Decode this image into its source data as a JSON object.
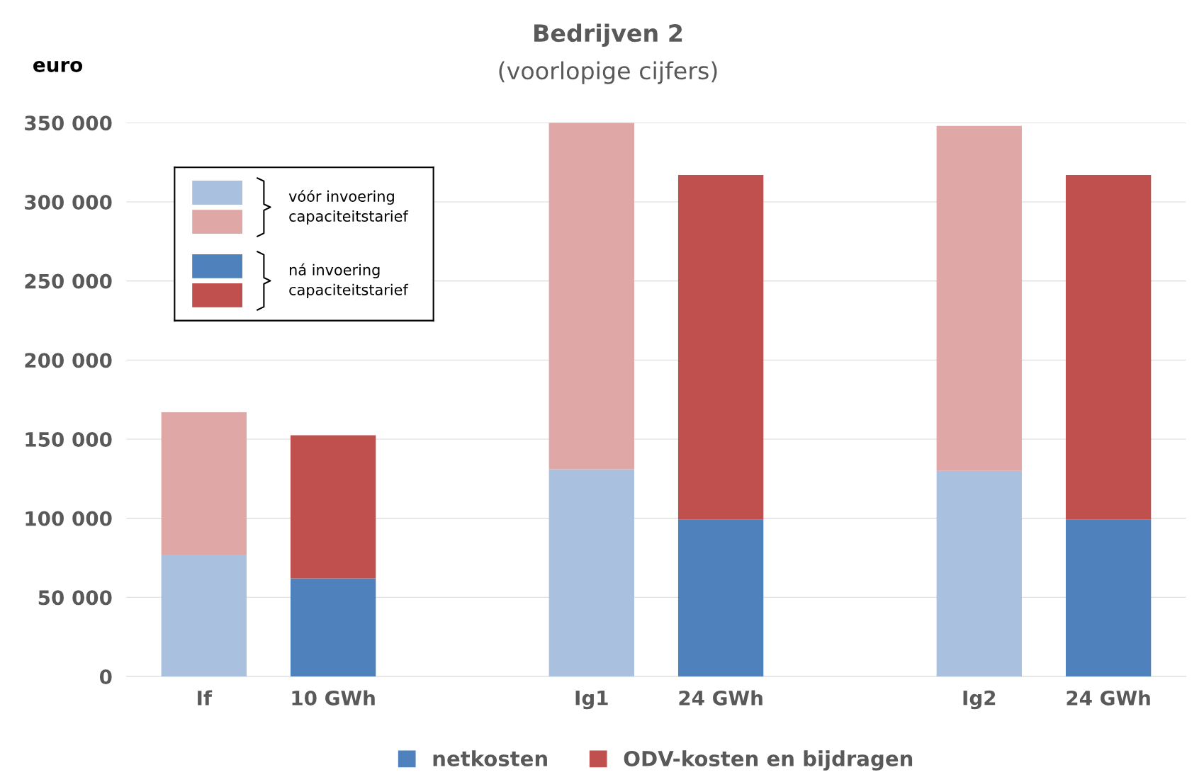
{
  "chart_data": {
    "type": "bar",
    "stacked": true,
    "title": "Bedrijven 2",
    "subtitle": "(voorlopige cijfers)",
    "ylabel": "euro",
    "categories": [
      "If",
      "10 GWh",
      null,
      "Ig1",
      "24 GWh",
      null,
      "Ig2",
      "24 GWh"
    ],
    "series": [
      {
        "name": "netkosten",
        "color": "#4f81bd",
        "colors": [
          "#a9c1df",
          "#4f81bd",
          null,
          "#a9c1df",
          "#4f81bd",
          null,
          "#a9c1df",
          "#4f81bd"
        ],
        "values": [
          77000,
          62000,
          null,
          131000,
          99000,
          null,
          130000,
          99000
        ]
      },
      {
        "name": "ODV-kosten en bijdragen",
        "color": "#c0504d",
        "colors": [
          "#dfa7a6",
          "#c0504d",
          null,
          "#dfa7a6",
          "#c0504d",
          null,
          "#dfa7a6",
          "#c0504d"
        ],
        "values": [
          90000,
          90500,
          null,
          219000,
          218000,
          null,
          218000,
          218000
        ]
      }
    ],
    "ylim": [
      0,
      350000
    ],
    "yticks": [
      {
        "value": 0,
        "label": "0"
      },
      {
        "value": 50000,
        "label": "50 000"
      },
      {
        "value": 100000,
        "label": "100 000"
      },
      {
        "value": 150000,
        "label": "150 000"
      },
      {
        "value": 200000,
        "label": "200 000"
      },
      {
        "value": 250000,
        "label": "250 000"
      },
      {
        "value": 300000,
        "label": "300 000"
      },
      {
        "value": 350000,
        "label": "350 000"
      }
    ],
    "grid": "y",
    "legend": "bottom",
    "annotations": [
      "vóór invoering\ncapaciteitstarief",
      "ná invoering\ncapaciteitstarief"
    ]
  }
}
